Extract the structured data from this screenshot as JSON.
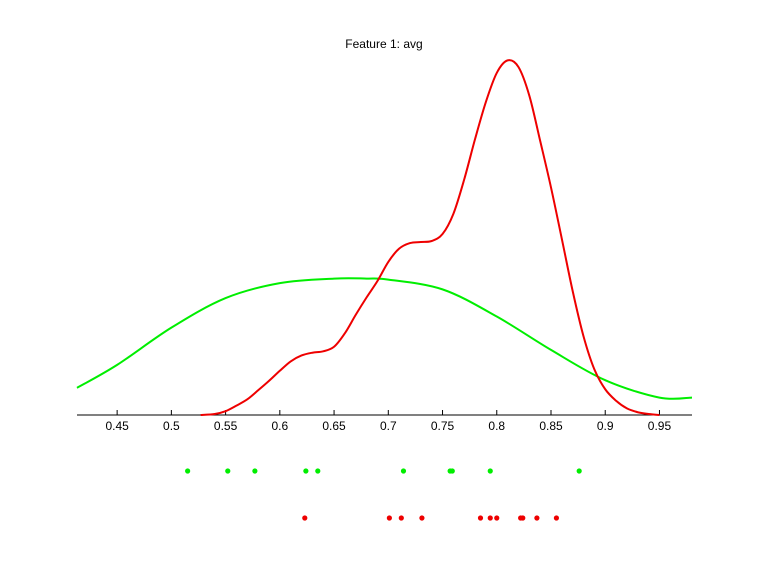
{
  "chart_data": {
    "type": "line",
    "title": "Feature 1: avg",
    "xlabel": "",
    "ylabel": "",
    "xlim": [
      0.413,
      0.98
    ],
    "ylim": [
      0,
      1
    ],
    "grid": false,
    "legend": "none",
    "x_ticks": [
      0.45,
      0.5,
      0.55,
      0.6,
      0.65,
      0.7,
      0.75,
      0.8,
      0.85,
      0.9,
      0.95
    ],
    "x_tick_labels": [
      "0.45",
      "0.5",
      "0.55",
      "0.6",
      "0.65",
      "0.7",
      "0.75",
      "0.8",
      "0.85",
      "0.9",
      "0.95"
    ],
    "series": [
      {
        "color": "#00ee00",
        "x": [
          0.413,
          0.45,
          0.5,
          0.55,
          0.6,
          0.65,
          0.68,
          0.7,
          0.75,
          0.8,
          0.85,
          0.9,
          0.95,
          0.98
        ],
        "y": [
          0.078,
          0.144,
          0.251,
          0.336,
          0.379,
          0.392,
          0.392,
          0.389,
          0.361,
          0.283,
          0.187,
          0.1,
          0.05,
          0.05
        ]
      },
      {
        "color": "#ee0000",
        "x": [
          0.527,
          0.54,
          0.55,
          0.56,
          0.57,
          0.58,
          0.59,
          0.6,
          0.61,
          0.62,
          0.63,
          0.64,
          0.65,
          0.66,
          0.67,
          0.68,
          0.69,
          0.7,
          0.71,
          0.72,
          0.73,
          0.74,
          0.75,
          0.76,
          0.77,
          0.78,
          0.79,
          0.8,
          0.81,
          0.82,
          0.83,
          0.84,
          0.85,
          0.86,
          0.87,
          0.88,
          0.89,
          0.9,
          0.91,
          0.92,
          0.93,
          0.94,
          0.95
        ],
        "y": [
          0.0,
          0.003,
          0.011,
          0.027,
          0.045,
          0.071,
          0.098,
          0.127,
          0.154,
          0.171,
          0.179,
          0.183,
          0.196,
          0.235,
          0.288,
          0.338,
          0.385,
          0.44,
          0.478,
          0.494,
          0.497,
          0.5,
          0.52,
          0.578,
          0.677,
          0.793,
          0.9,
          0.983,
          1.019,
          1.0,
          0.918,
          0.788,
          0.654,
          0.506,
          0.356,
          0.226,
          0.131,
          0.074,
          0.041,
          0.019,
          0.008,
          0.003,
          0.0
        ]
      }
    ],
    "rugs": [
      {
        "color": "#00ee00",
        "values": [
          0.515,
          0.552,
          0.577,
          0.624,
          0.635,
          0.714,
          0.757,
          0.759,
          0.794,
          0.876
        ]
      },
      {
        "color": "#ee0000",
        "values": [
          0.623,
          0.701,
          0.712,
          0.731,
          0.785,
          0.794,
          0.8,
          0.822,
          0.824,
          0.837,
          0.855
        ]
      }
    ]
  }
}
